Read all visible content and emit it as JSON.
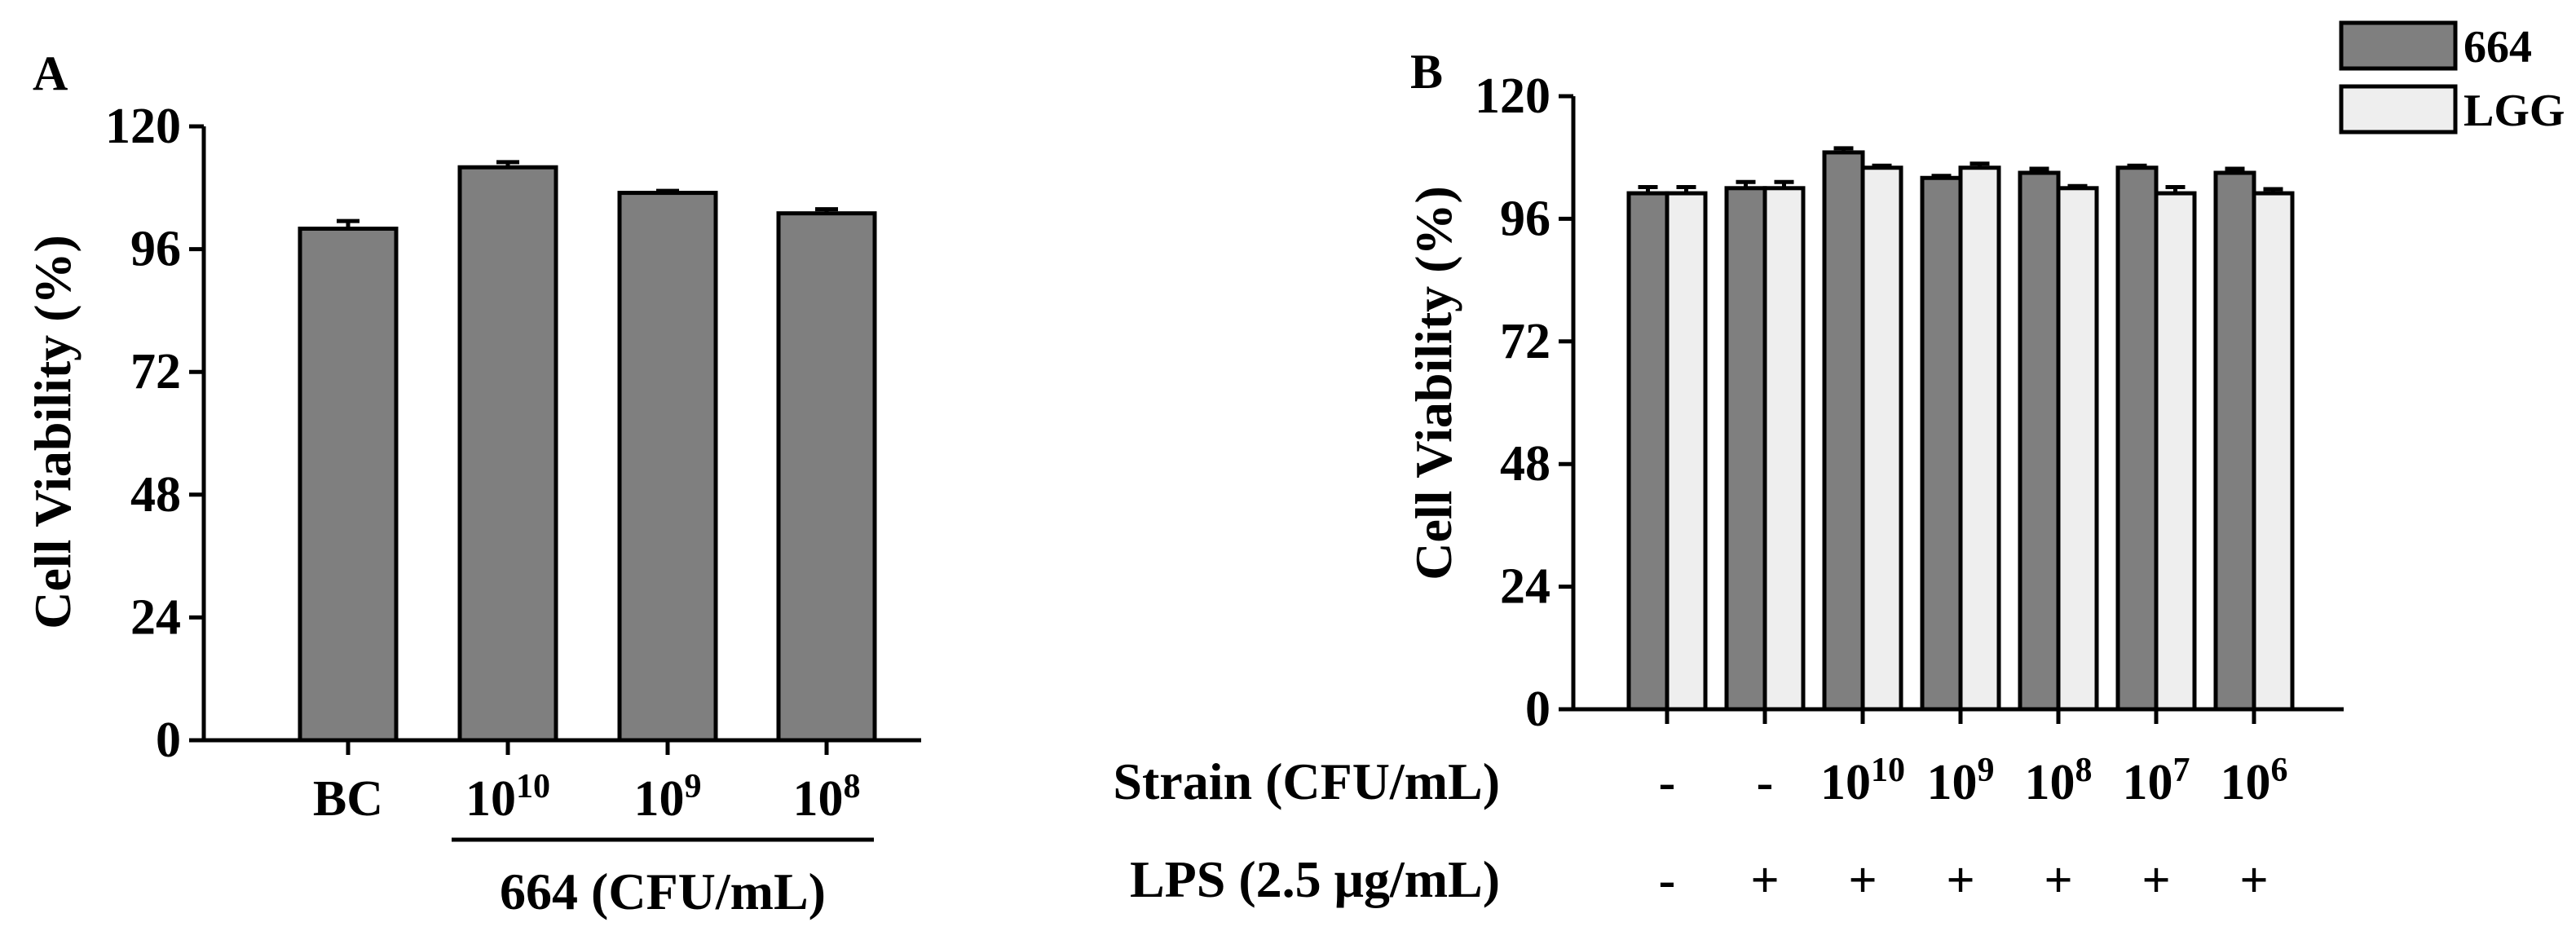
{
  "figure": {
    "panels": [
      "A",
      "B"
    ]
  },
  "chart_data": [
    {
      "panel": "A",
      "type": "bar",
      "ylabel": "Cell Viability (%)",
      "ylim": [
        0,
        120
      ],
      "yticks": [
        0,
        24,
        48,
        72,
        96,
        120
      ],
      "categories": [
        {
          "base": "BC",
          "exp": ""
        },
        {
          "base": "10",
          "exp": "10"
        },
        {
          "base": "10",
          "exp": "9"
        },
        {
          "base": "10",
          "exp": "8"
        }
      ],
      "values": [
        100,
        112,
        107,
        103
      ],
      "errors": [
        1.5,
        1.0,
        0.4,
        0.8
      ],
      "group_label": "664 (CFU/mL)",
      "bar_color": "#7f7f7f"
    },
    {
      "panel": "B",
      "type": "bar",
      "ylabel": "Cell Viability (%)",
      "ylim": [
        0,
        120
      ],
      "yticks": [
        0,
        24,
        48,
        72,
        96,
        120
      ],
      "series": [
        {
          "name": "664",
          "color": "#7f7f7f",
          "values": [
            101,
            102,
            109,
            104,
            105,
            106,
            105
          ],
          "errors": [
            1.2,
            1.2,
            0.8,
            0.4,
            0.8,
            0.4,
            0.8
          ]
        },
        {
          "name": "LGG",
          "color": "#eeeeee",
          "values": [
            101,
            102,
            106,
            106,
            102,
            101,
            101
          ],
          "errors": [
            1.2,
            1.2,
            0.4,
            0.8,
            0.4,
            1.2,
            0.8
          ]
        }
      ],
      "rows": [
        {
          "label": "Strain (CFU/mL)",
          "values": [
            {
              "base": "-",
              "exp": ""
            },
            {
              "base": "-",
              "exp": ""
            },
            {
              "base": "10",
              "exp": "10"
            },
            {
              "base": "10",
              "exp": "9"
            },
            {
              "base": "10",
              "exp": "8"
            },
            {
              "base": "10",
              "exp": "7"
            },
            {
              "base": "10",
              "exp": "6"
            }
          ]
        },
        {
          "label": "LPS (2.5 μg/mL)",
          "values": [
            {
              "base": "-",
              "exp": ""
            },
            {
              "base": "+",
              "exp": ""
            },
            {
              "base": "+",
              "exp": ""
            },
            {
              "base": "+",
              "exp": ""
            },
            {
              "base": "+",
              "exp": ""
            },
            {
              "base": "+",
              "exp": ""
            },
            {
              "base": "+",
              "exp": ""
            }
          ]
        }
      ],
      "legend": [
        "664",
        "LGG"
      ]
    }
  ]
}
